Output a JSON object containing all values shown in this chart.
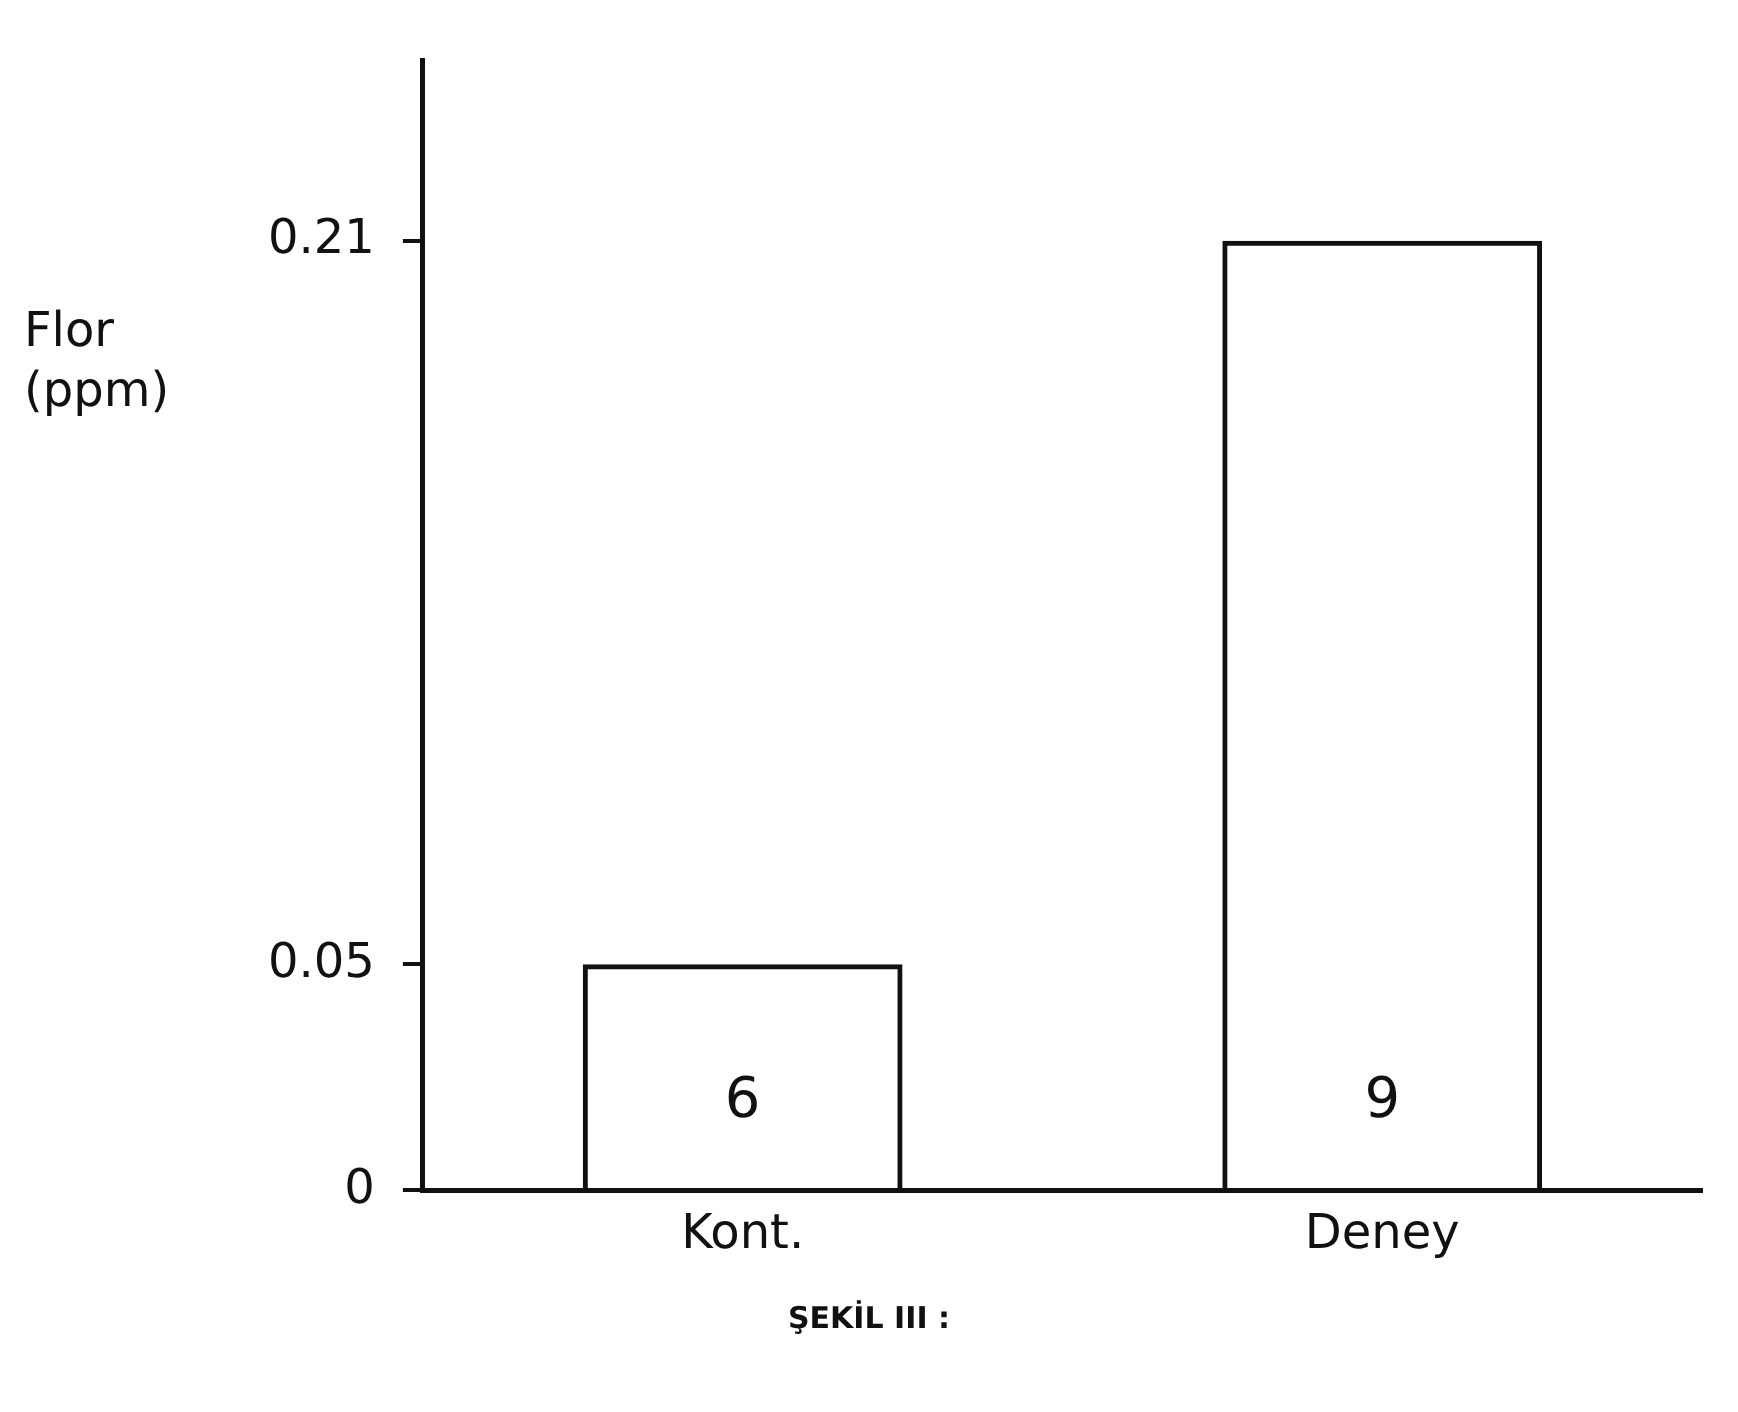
{
  "chart_data": {
    "type": "bar",
    "ylabel": "Flor\n(ppm)",
    "categories": [
      "Kont.",
      "Deney"
    ],
    "values": [
      0.05,
      0.21
    ],
    "color": "#111111",
    "ylim": [
      0,
      0.25
    ],
    "yticks": [
      0,
      0.05,
      0.21
    ],
    "annotations": [
      "6",
      "9",
      "ŞEKİL III :"
    ]
  }
}
